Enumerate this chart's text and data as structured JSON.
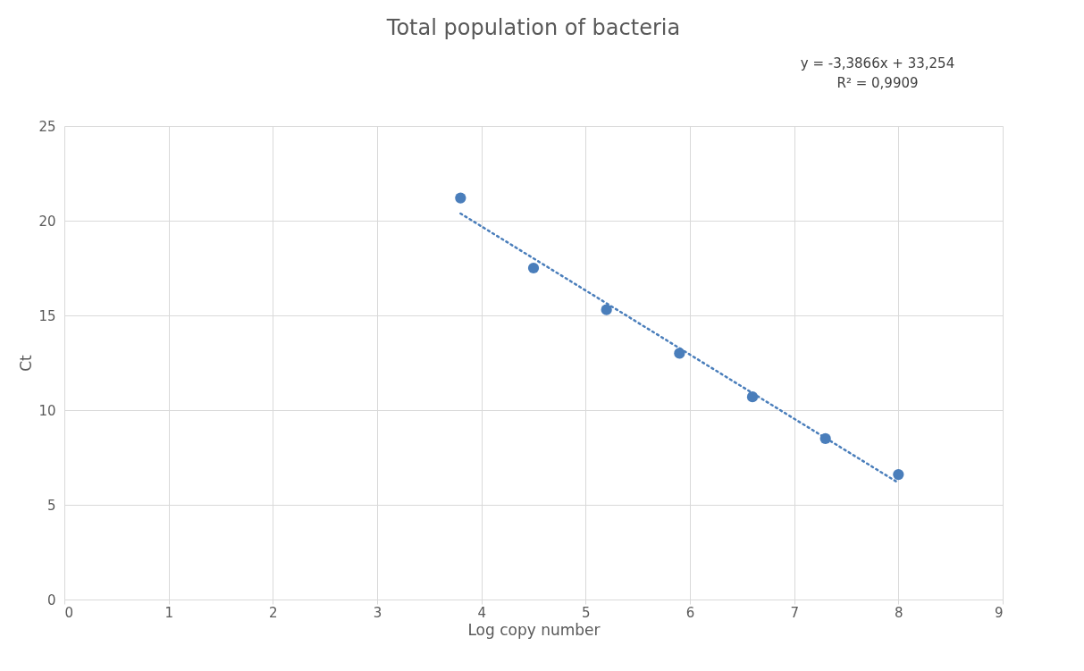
{
  "chart_data": {
    "type": "scatter",
    "title": "Total population of bacteria",
    "xlabel": "Log copy number",
    "ylabel": "Ct",
    "xlim": [
      0,
      9
    ],
    "xticks": [
      0,
      1,
      2,
      3,
      4,
      5,
      6,
      7,
      8,
      9
    ],
    "ylim": [
      0,
      25
    ],
    "yticks": [
      0,
      5,
      10,
      15,
      20,
      25
    ],
    "grid": true,
    "series": [
      {
        "marker": "circle",
        "color": "#4a7ebb",
        "x": [
          3.8,
          4.5,
          5.2,
          5.9,
          6.6,
          7.3,
          8.0
        ],
        "values": [
          21.2,
          17.5,
          15.3,
          13.0,
          10.7,
          8.5,
          6.6
        ]
      },
      {
        "type": "line",
        "color": "#4a7ebb",
        "line_style": "dotted",
        "x": [
          3.8,
          8.0
        ],
        "values": [
          20.38,
          6.16
        ]
      }
    ],
    "annotations": [
      "y = -3,3866x + 33,254",
      "R² = 0,9909"
    ]
  }
}
